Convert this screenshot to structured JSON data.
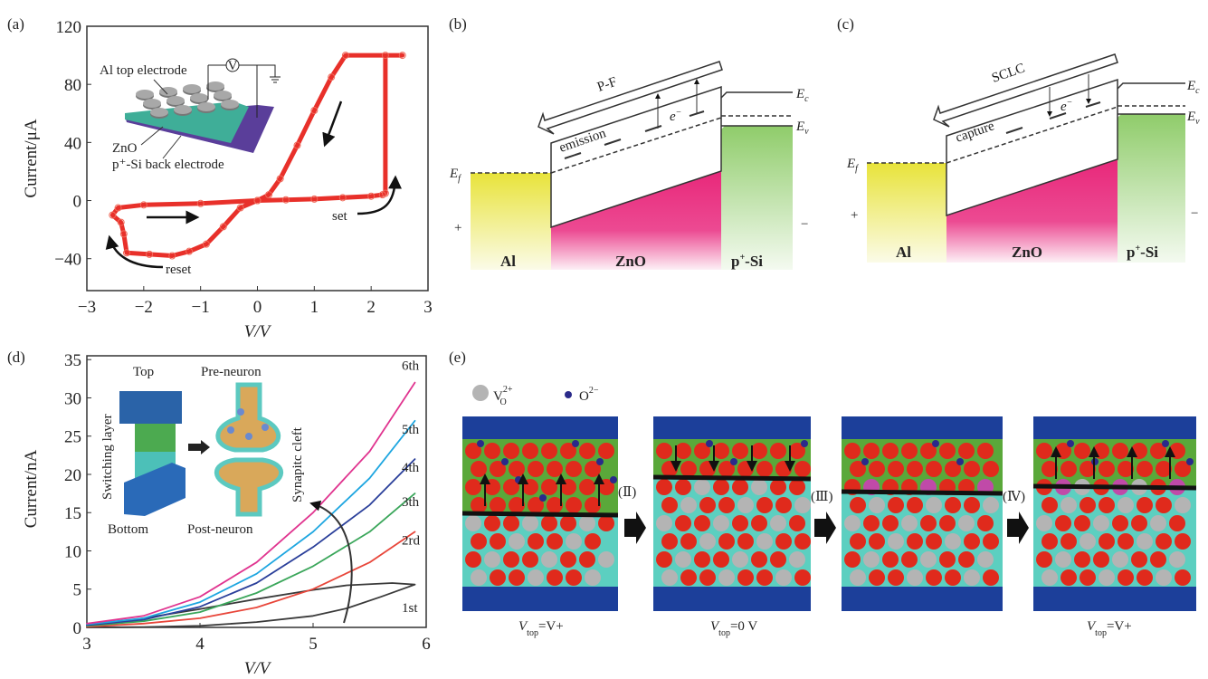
{
  "panels": {
    "a": "(a)",
    "b": "(b)",
    "c": "(c)",
    "d": "(d)",
    "e": "(e)"
  },
  "chart_data": [
    {
      "type": "line",
      "title": "",
      "xlabel": "V/V",
      "ylabel": "Current/μA",
      "xlim": [
        -3,
        3
      ],
      "ylim": [
        -62,
        120
      ],
      "xticks": [
        -3,
        -2,
        -1,
        0,
        1,
        2,
        3
      ],
      "xtick_labels": [
        "−3",
        "−2",
        "−1",
        "0",
        "1",
        "2",
        "3"
      ],
      "yticks": [
        -40,
        0,
        40,
        80,
        120
      ],
      "ytick_labels": [
        "−40",
        "0",
        "40",
        "80",
        "120"
      ],
      "grid": false,
      "color": "#e8302a",
      "series": [
        {
          "name": "I-V sweep",
          "x": [
            0,
            0.5,
            1,
            1.5,
            2.0,
            2.2,
            2.25,
            2.25,
            2.55,
            1.55,
            1.3,
            1.0,
            0.7,
            0.4,
            0.2,
            0,
            -0.3,
            -0.6,
            -0.9,
            -1.2,
            -1.5,
            -1.9,
            -2.3,
            -2.35,
            -2.4,
            -2.55,
            -2.45,
            -2.0,
            -1.0,
            0
          ],
          "y": [
            0,
            0.5,
            1,
            2,
            3,
            4,
            5,
            100,
            100,
            100,
            85,
            62,
            38,
            15,
            4,
            0,
            -5,
            -18,
            -30,
            -35,
            -38,
            -37,
            -36,
            -23,
            -15,
            -10,
            -5,
            -3,
            -2,
            0
          ]
        }
      ],
      "annotations": {
        "set": "set",
        "reset": "reset"
      },
      "inset": {
        "top_electrode": "Al top electrode",
        "zno": "ZnO",
        "back_electrode": "p⁺-Si back electrode",
        "voltmeter": "V"
      }
    },
    {
      "type": "line",
      "title": "",
      "xlabel": "V/V",
      "ylabel": "Current/nA",
      "xlim": [
        3,
        6
      ],
      "ylim": [
        0,
        35.5
      ],
      "xticks": [
        3,
        4,
        5,
        6
      ],
      "xtick_labels": [
        "3",
        "4",
        "5",
        "6"
      ],
      "yticks": [
        0,
        5,
        10,
        15,
        20,
        25,
        30,
        35
      ],
      "ytick_labels": [
        "0",
        "5",
        "10",
        "15",
        "20",
        "25",
        "30",
        "35"
      ],
      "grid": false,
      "series": [
        {
          "name": "1st",
          "color": "#3a3a3a",
          "x": [
            3,
            3.5,
            4,
            4.5,
            5,
            5.3,
            5.6,
            5.9,
            5.7,
            5.3,
            5.0,
            4.5,
            4.0,
            3.5,
            3
          ],
          "y": [
            0,
            0.05,
            0.2,
            0.7,
            1.5,
            2.5,
            4,
            5.6,
            5.8,
            5.5,
            4.9,
            3.7,
            2.4,
            1.2,
            0.2
          ]
        },
        {
          "name": "2rd",
          "color": "#e8463a",
          "x": [
            3,
            3.5,
            4,
            4.5,
            5,
            5.5,
            5.9
          ],
          "y": [
            0.1,
            0.5,
            1.2,
            2.6,
            5,
            8.5,
            12.5
          ]
        },
        {
          "name": "3th",
          "color": "#3aa65a",
          "x": [
            3,
            3.5,
            4,
            4.5,
            5,
            5.5,
            5.9
          ],
          "y": [
            0.2,
            0.8,
            2,
            4.5,
            8,
            12.5,
            17.5
          ]
        },
        {
          "name": "4th",
          "color": "#2a3f9a",
          "x": [
            3,
            3.5,
            4,
            4.5,
            5,
            5.5,
            5.9
          ],
          "y": [
            0.3,
            1,
            2.7,
            5.8,
            10.5,
            16,
            22
          ]
        },
        {
          "name": "5th",
          "color": "#1ea6e0",
          "x": [
            3,
            3.5,
            4,
            4.5,
            5,
            5.5,
            5.9
          ],
          "y": [
            0.4,
            1.2,
            3.3,
            7,
            12.5,
            19.5,
            27
          ]
        },
        {
          "name": "6th",
          "color": "#e0348f",
          "x": [
            3,
            3.5,
            4,
            4.5,
            5,
            5.5,
            5.9
          ],
          "y": [
            0.5,
            1.5,
            4,
            8.5,
            15,
            23,
            32
          ]
        }
      ],
      "inset": {
        "top": "Top",
        "pre_neuron": "Pre-neuron",
        "switching_layer": "Switching layer",
        "bottom": "Bottom",
        "post_neuron": "Post-neuron",
        "synaptic_cleft": "Synapitc cleft"
      }
    }
  ],
  "diagram_b": {
    "mechanism": "P-F",
    "process": "emission",
    "electron": {
      "base": "e",
      "sup": "−"
    },
    "ef": {
      "main": "E",
      "sub": "f"
    },
    "ec": {
      "main": "E",
      "sub": "c"
    },
    "ev": {
      "main": "E",
      "sub": "v"
    },
    "plus": "+",
    "minus": "−",
    "layers": {
      "al": "Al",
      "zno": "ZnO",
      "psi": {
        "base": "p",
        "sup": "+",
        "rest": "-Si"
      }
    }
  },
  "diagram_c": {
    "mechanism": "SCLC",
    "process": "capture",
    "electron": {
      "base": "e",
      "sup": "−"
    },
    "ef": {
      "main": "E",
      "sub": "f"
    },
    "ec": {
      "main": "E",
      "sub": "c"
    },
    "ev": {
      "main": "E",
      "sub": "v"
    },
    "plus": "+",
    "minus": "−",
    "layers": {
      "al": "Al",
      "zno": "ZnO",
      "psi": {
        "base": "p",
        "sup": "+",
        "rest": "-Si"
      }
    }
  },
  "diagram_e": {
    "legend": {
      "vacancy": {
        "base": "V",
        "sub": "O",
        "sup": "2+"
      },
      "oxygen": {
        "base": "O",
        "sup": "2−"
      }
    },
    "steps": [
      "(Ⅱ)",
      "(Ⅲ)",
      "(Ⅳ)"
    ],
    "conditions": [
      {
        "base": "V",
        "sub": "top",
        "rest": "=V+"
      },
      {
        "base": "V",
        "sub": "top",
        "rest": "=0 V"
      },
      {
        "base": "V",
        "sub": "top",
        "rest": "=V+"
      }
    ],
    "colors": {
      "electrode": "#1c3f9a",
      "oxide_top": "#5aa83a",
      "oxide_bottom": "#5ccfc0",
      "o_atom": "#e02a1c",
      "vacancy": "#b4b4b4",
      "o_ion": "#2a2a8a"
    }
  }
}
